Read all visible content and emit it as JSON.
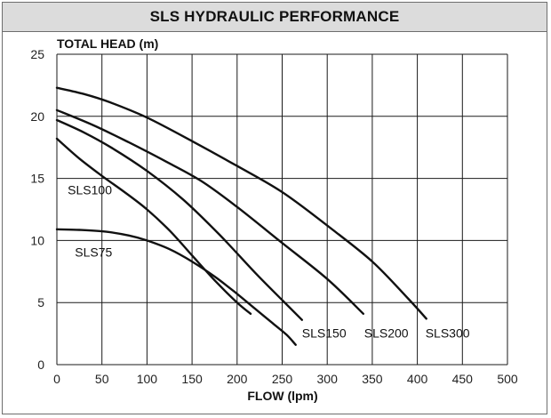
{
  "header": {
    "title": "SLS HYDRAULIC PERFORMANCE"
  },
  "colors": {
    "line": "#111111",
    "grid": "#1a1a1a",
    "title_bg": "#dcdcdc",
    "border": "#6e6e6e"
  },
  "chart_data": {
    "type": "line",
    "title": "SLS HYDRAULIC PERFORMANCE",
    "xlabel": "FLOW (lpm)",
    "ylabel": "TOTAL HEAD (m)",
    "xlim": [
      0,
      500
    ],
    "ylim": [
      0,
      25
    ],
    "xticks": [
      0,
      50,
      100,
      150,
      200,
      250,
      300,
      350,
      400,
      450,
      500
    ],
    "yticks": [
      0,
      5,
      10,
      15,
      20,
      25
    ],
    "grid": true,
    "series": [
      {
        "name": "SLS75",
        "points": [
          [
            0,
            10.9
          ],
          [
            25,
            10.85
          ],
          [
            55,
            10.7
          ],
          [
            80,
            10.4
          ],
          [
            100,
            10.0
          ],
          [
            125,
            9.3
          ],
          [
            150,
            8.3
          ],
          [
            175,
            7.1
          ],
          [
            200,
            5.7
          ],
          [
            220,
            4.5
          ],
          [
            240,
            3.3
          ],
          [
            255,
            2.4
          ],
          [
            265,
            1.6
          ]
        ]
      },
      {
        "name": "SLS100",
        "points": [
          [
            0,
            18.2
          ],
          [
            25,
            16.6
          ],
          [
            50,
            15.2
          ],
          [
            75,
            13.9
          ],
          [
            100,
            12.5
          ],
          [
            125,
            10.8
          ],
          [
            150,
            8.8
          ],
          [
            175,
            6.8
          ],
          [
            200,
            5.0
          ],
          [
            215,
            4.1
          ]
        ]
      },
      {
        "name": "SLS150",
        "points": [
          [
            0,
            19.7
          ],
          [
            30,
            18.7
          ],
          [
            60,
            17.5
          ],
          [
            100,
            15.6
          ],
          [
            140,
            13.3
          ],
          [
            180,
            10.5
          ],
          [
            220,
            7.4
          ],
          [
            250,
            5.2
          ],
          [
            272,
            3.6
          ]
        ]
      },
      {
        "name": "SLS200",
        "points": [
          [
            0,
            20.5
          ],
          [
            40,
            19.3
          ],
          [
            80,
            17.9
          ],
          [
            120,
            16.4
          ],
          [
            160,
            14.8
          ],
          [
            200,
            12.7
          ],
          [
            250,
            9.8
          ],
          [
            300,
            6.9
          ],
          [
            340,
            4.1
          ]
        ]
      },
      {
        "name": "SLS300",
        "points": [
          [
            0,
            22.3
          ],
          [
            30,
            21.8
          ],
          [
            60,
            21.1
          ],
          [
            100,
            19.9
          ],
          [
            150,
            18.0
          ],
          [
            200,
            16.0
          ],
          [
            250,
            13.9
          ],
          [
            300,
            11.2
          ],
          [
            350,
            8.3
          ],
          [
            390,
            5.3
          ],
          [
            410,
            3.7
          ]
        ]
      }
    ],
    "series_labels": [
      {
        "name": "SLS100",
        "text": "SLS100",
        "at": [
          12,
          13.7
        ]
      },
      {
        "name": "SLS75",
        "text": "SLS75",
        "at": [
          20,
          8.7
        ]
      },
      {
        "name": "SLS150",
        "text": "SLS150",
        "at": [
          272,
          2.2
        ]
      },
      {
        "name": "SLS200",
        "text": "SLS200",
        "at": [
          341,
          2.2
        ]
      },
      {
        "name": "SLS300",
        "text": "SLS300",
        "at": [
          409,
          2.2
        ]
      }
    ]
  }
}
